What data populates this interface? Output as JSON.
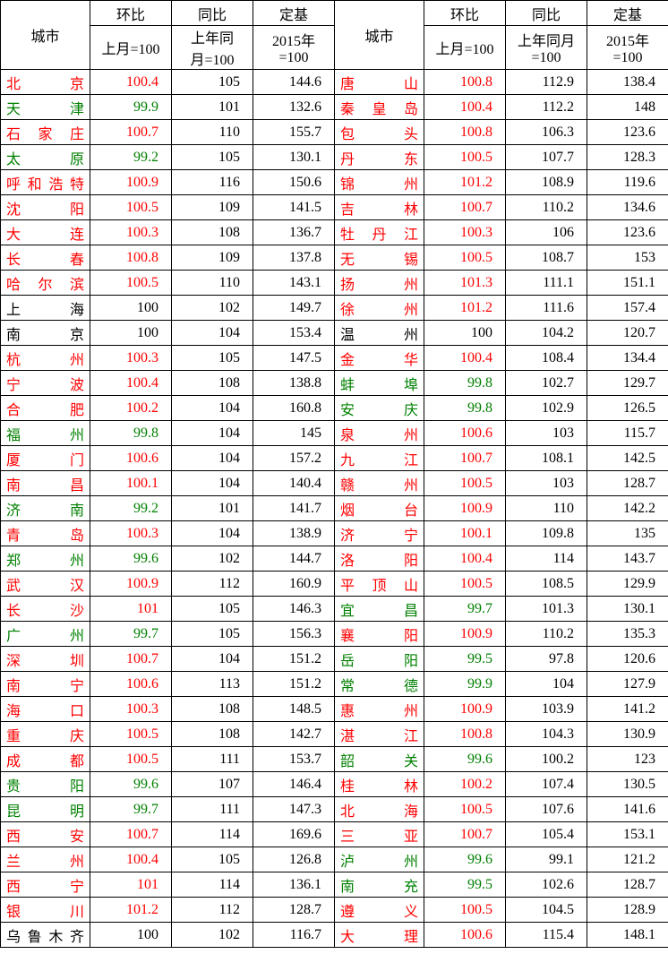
{
  "headers": {
    "city": "城市",
    "hb": "环比",
    "tb": "同比",
    "dj": "定基",
    "hb_sub": "上月=100",
    "tb_sub1": "上年同",
    "tb_sub2": "月=100",
    "tb_sub_single": "上年同月",
    "tb_sub_single2": "=100",
    "dj_sub1": "2015年",
    "dj_sub2": "=100"
  },
  "colors": {
    "up": "#ff0000",
    "down": "#008000",
    "flat": "#000000"
  },
  "rows_left": [
    {
      "city": "北京",
      "chars": [
        "北",
        "京"
      ],
      "hb": "100.4",
      "tb": "105",
      "dj": "144.6"
    },
    {
      "city": "天津",
      "chars": [
        "天",
        "津"
      ],
      "hb": "99.9",
      "tb": "101",
      "dj": "132.6"
    },
    {
      "city": "石家庄",
      "chars": [
        "石",
        "家",
        "庄"
      ],
      "hb": "100.7",
      "tb": "110",
      "dj": "155.7"
    },
    {
      "city": "太原",
      "chars": [
        "太",
        "原"
      ],
      "hb": "99.2",
      "tb": "105",
      "dj": "130.1"
    },
    {
      "city": "呼和浩特",
      "chars": [
        "呼",
        "和",
        "浩",
        "特"
      ],
      "hb": "100.9",
      "tb": "116",
      "dj": "150.6"
    },
    {
      "city": "沈阳",
      "chars": [
        "沈",
        "阳"
      ],
      "hb": "100.5",
      "tb": "109",
      "dj": "141.5"
    },
    {
      "city": "大连",
      "chars": [
        "大",
        "连"
      ],
      "hb": "100.3",
      "tb": "108",
      "dj": "136.7"
    },
    {
      "city": "长春",
      "chars": [
        "长",
        "春"
      ],
      "hb": "100.8",
      "tb": "109",
      "dj": "137.8"
    },
    {
      "city": "哈尔滨",
      "chars": [
        "哈",
        "尔",
        "滨"
      ],
      "hb": "100.5",
      "tb": "110",
      "dj": "143.1"
    },
    {
      "city": "上海",
      "chars": [
        "上",
        "海"
      ],
      "hb": "100",
      "tb": "102",
      "dj": "149.7"
    },
    {
      "city": "南京",
      "chars": [
        "南",
        "京"
      ],
      "hb": "100",
      "tb": "104",
      "dj": "153.4"
    },
    {
      "city": "杭州",
      "chars": [
        "杭",
        "州"
      ],
      "hb": "100.3",
      "tb": "105",
      "dj": "147.5"
    },
    {
      "city": "宁波",
      "chars": [
        "宁",
        "波"
      ],
      "hb": "100.4",
      "tb": "108",
      "dj": "138.8"
    },
    {
      "city": "合肥",
      "chars": [
        "合",
        "肥"
      ],
      "hb": "100.2",
      "tb": "104",
      "dj": "160.8"
    },
    {
      "city": "福州",
      "chars": [
        "福",
        "州"
      ],
      "hb": "99.8",
      "tb": "104",
      "dj": "145"
    },
    {
      "city": "厦门",
      "chars": [
        "厦",
        "门"
      ],
      "hb": "100.6",
      "tb": "104",
      "dj": "157.2"
    },
    {
      "city": "南昌",
      "chars": [
        "南",
        "昌"
      ],
      "hb": "100.1",
      "tb": "104",
      "dj": "140.4"
    },
    {
      "city": "济南",
      "chars": [
        "济",
        "南"
      ],
      "hb": "99.2",
      "tb": "101",
      "dj": "141.7"
    },
    {
      "city": "青岛",
      "chars": [
        "青",
        "岛"
      ],
      "hb": "100.3",
      "tb": "104",
      "dj": "138.9"
    },
    {
      "city": "郑州",
      "chars": [
        "郑",
        "州"
      ],
      "hb": "99.6",
      "tb": "102",
      "dj": "144.7"
    },
    {
      "city": "武汉",
      "chars": [
        "武",
        "汉"
      ],
      "hb": "100.9",
      "tb": "112",
      "dj": "160.9"
    },
    {
      "city": "长沙",
      "chars": [
        "长",
        "沙"
      ],
      "hb": "101",
      "tb": "105",
      "dj": "146.3"
    },
    {
      "city": "广州",
      "chars": [
        "广",
        "州"
      ],
      "hb": "99.7",
      "tb": "105",
      "dj": "156.3"
    },
    {
      "city": "深圳",
      "chars": [
        "深",
        "圳"
      ],
      "hb": "100.7",
      "tb": "104",
      "dj": "151.2"
    },
    {
      "city": "南宁",
      "chars": [
        "南",
        "宁"
      ],
      "hb": "100.6",
      "tb": "113",
      "dj": "151.2"
    },
    {
      "city": "海口",
      "chars": [
        "海",
        "口"
      ],
      "hb": "100.3",
      "tb": "108",
      "dj": "148.5"
    },
    {
      "city": "重庆",
      "chars": [
        "重",
        "庆"
      ],
      "hb": "100.5",
      "tb": "108",
      "dj": "142.7"
    },
    {
      "city": "成都",
      "chars": [
        "成",
        "都"
      ],
      "hb": "100.5",
      "tb": "111",
      "dj": "153.7"
    },
    {
      "city": "贵阳",
      "chars": [
        "贵",
        "阳"
      ],
      "hb": "99.6",
      "tb": "107",
      "dj": "146.4"
    },
    {
      "city": "昆明",
      "chars": [
        "昆",
        "明"
      ],
      "hb": "99.7",
      "tb": "111",
      "dj": "147.3"
    },
    {
      "city": "西安",
      "chars": [
        "西",
        "安"
      ],
      "hb": "100.7",
      "tb": "114",
      "dj": "169.6"
    },
    {
      "city": "兰州",
      "chars": [
        "兰",
        "州"
      ],
      "hb": "100.4",
      "tb": "105",
      "dj": "126.8"
    },
    {
      "city": "西宁",
      "chars": [
        "西",
        "宁"
      ],
      "hb": "101",
      "tb": "114",
      "dj": "136.1"
    },
    {
      "city": "银川",
      "chars": [
        "银",
        "川"
      ],
      "hb": "101.2",
      "tb": "112",
      "dj": "128.7"
    },
    {
      "city": "乌鲁木齐",
      "chars": [
        "乌",
        "鲁",
        "木",
        "齐"
      ],
      "hb": "100",
      "tb": "102",
      "dj": "116.7"
    }
  ],
  "rows_right": [
    {
      "city": "唐山",
      "chars": [
        "唐",
        "山"
      ],
      "hb": "100.8",
      "tb": "112.9",
      "dj": "138.4"
    },
    {
      "city": "秦皇岛",
      "chars": [
        "秦",
        "皇",
        "岛"
      ],
      "hb": "100.4",
      "tb": "112.2",
      "dj": "148"
    },
    {
      "city": "包头",
      "chars": [
        "包",
        "头"
      ],
      "hb": "100.8",
      "tb": "106.3",
      "dj": "123.6"
    },
    {
      "city": "丹东",
      "chars": [
        "丹",
        "东"
      ],
      "hb": "100.5",
      "tb": "107.7",
      "dj": "128.3"
    },
    {
      "city": "锦州",
      "chars": [
        "锦",
        "州"
      ],
      "hb": "101.2",
      "tb": "108.9",
      "dj": "119.6"
    },
    {
      "city": "吉林",
      "chars": [
        "吉",
        "林"
      ],
      "hb": "100.7",
      "tb": "110.2",
      "dj": "134.6"
    },
    {
      "city": "牡丹江",
      "chars": [
        "牡",
        "丹",
        "江"
      ],
      "hb": "100.3",
      "tb": "106",
      "dj": "123.6"
    },
    {
      "city": "无锡",
      "chars": [
        "无",
        "锡"
      ],
      "hb": "100.5",
      "tb": "108.7",
      "dj": "153"
    },
    {
      "city": "扬州",
      "chars": [
        "扬",
        "州"
      ],
      "hb": "101.3",
      "tb": "111.1",
      "dj": "151.1"
    },
    {
      "city": "徐州",
      "chars": [
        "徐",
        "州"
      ],
      "hb": "101.2",
      "tb": "111.6",
      "dj": "157.4"
    },
    {
      "city": "温州",
      "chars": [
        "温",
        "州"
      ],
      "hb": "100",
      "tb": "104.2",
      "dj": "120.7"
    },
    {
      "city": "金华",
      "chars": [
        "金",
        "华"
      ],
      "hb": "100.4",
      "tb": "108.4",
      "dj": "134.4"
    },
    {
      "city": "蚌埠",
      "chars": [
        "蚌",
        "埠"
      ],
      "hb": "99.8",
      "tb": "102.7",
      "dj": "129.7"
    },
    {
      "city": "安庆",
      "chars": [
        "安",
        "庆"
      ],
      "hb": "99.8",
      "tb": "102.9",
      "dj": "126.5"
    },
    {
      "city": "泉州",
      "chars": [
        "泉",
        "州"
      ],
      "hb": "100.6",
      "tb": "103",
      "dj": "115.7"
    },
    {
      "city": "九江",
      "chars": [
        "九",
        "江"
      ],
      "hb": "100.7",
      "tb": "108.1",
      "dj": "142.5"
    },
    {
      "city": "赣州",
      "chars": [
        "赣",
        "州"
      ],
      "hb": "100.5",
      "tb": "103",
      "dj": "128.7"
    },
    {
      "city": "烟台",
      "chars": [
        "烟",
        "台"
      ],
      "hb": "100.9",
      "tb": "110",
      "dj": "142.2"
    },
    {
      "city": "济宁",
      "chars": [
        "济",
        "宁"
      ],
      "hb": "100.1",
      "tb": "109.8",
      "dj": "135"
    },
    {
      "city": "洛阳",
      "chars": [
        "洛",
        "阳"
      ],
      "hb": "100.4",
      "tb": "114",
      "dj": "143.7"
    },
    {
      "city": "平顶山",
      "chars": [
        "平",
        "顶",
        "山"
      ],
      "hb": "100.5",
      "tb": "108.5",
      "dj": "129.9"
    },
    {
      "city": "宜昌",
      "chars": [
        "宜",
        "昌"
      ],
      "hb": "99.7",
      "tb": "101.3",
      "dj": "130.1"
    },
    {
      "city": "襄阳",
      "chars": [
        "襄",
        "阳"
      ],
      "hb": "100.9",
      "tb": "110.2",
      "dj": "135.3"
    },
    {
      "city": "岳阳",
      "chars": [
        "岳",
        "阳"
      ],
      "hb": "99.5",
      "tb": "97.8",
      "dj": "120.6"
    },
    {
      "city": "常德",
      "chars": [
        "常",
        "德"
      ],
      "hb": "99.9",
      "tb": "104",
      "dj": "127.9"
    },
    {
      "city": "惠州",
      "chars": [
        "惠",
        "州"
      ],
      "hb": "100.9",
      "tb": "103.9",
      "dj": "141.2"
    },
    {
      "city": "湛江",
      "chars": [
        "湛",
        "江"
      ],
      "hb": "100.8",
      "tb": "104.3",
      "dj": "130.9"
    },
    {
      "city": "韶关",
      "chars": [
        "韶",
        "关"
      ],
      "hb": "99.6",
      "tb": "100.2",
      "dj": "123"
    },
    {
      "city": "桂林",
      "chars": [
        "桂",
        "林"
      ],
      "hb": "100.2",
      "tb": "107.4",
      "dj": "130.5"
    },
    {
      "city": "北海",
      "chars": [
        "北",
        "海"
      ],
      "hb": "100.5",
      "tb": "107.6",
      "dj": "141.6"
    },
    {
      "city": "三亚",
      "chars": [
        "三",
        "亚"
      ],
      "hb": "100.7",
      "tb": "105.4",
      "dj": "153.1"
    },
    {
      "city": "泸州",
      "chars": [
        "泸",
        "州"
      ],
      "hb": "99.6",
      "tb": "99.1",
      "dj": "121.2"
    },
    {
      "city": "南充",
      "chars": [
        "南",
        "充"
      ],
      "hb": "99.5",
      "tb": "102.6",
      "dj": "128.7"
    },
    {
      "city": "遵义",
      "chars": [
        "遵",
        "义"
      ],
      "hb": "100.5",
      "tb": "104.5",
      "dj": "128.9"
    },
    {
      "city": "大理",
      "chars": [
        "大",
        "理"
      ],
      "hb": "100.6",
      "tb": "115.4",
      "dj": "148.1"
    }
  ]
}
